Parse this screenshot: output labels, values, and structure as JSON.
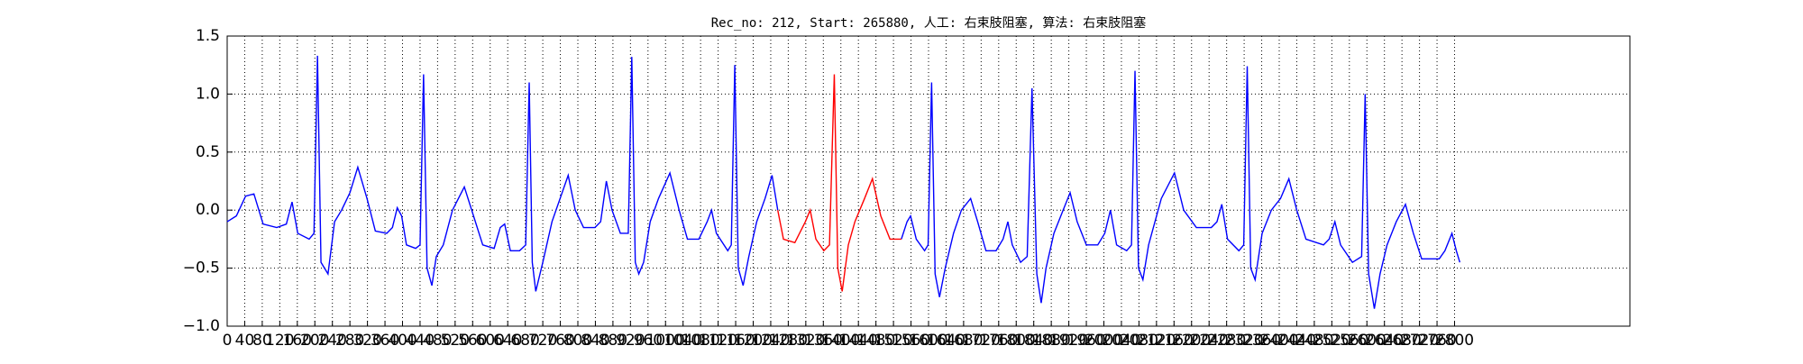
{
  "chart_data": {
    "type": "line",
    "title": "Rec_no: 212, Start: 265880, 人工: 右束肢阻塞, 算法: 右束肢阻塞",
    "xlim": [
      0,
      3200
    ],
    "ylim": [
      -1,
      1.5
    ],
    "xticks": [
      0,
      40,
      80,
      120,
      160,
      200,
      240,
      280,
      320,
      360,
      400,
      440,
      480,
      520,
      560,
      600,
      640,
      680,
      720,
      760,
      800,
      840,
      880,
      920,
      960,
      1000,
      1040,
      1080,
      1120,
      1160,
      1200,
      1240,
      1280,
      1320,
      1360,
      1400,
      1440,
      1480,
      1520,
      1560,
      1600,
      1640,
      1680,
      1720,
      1760,
      1800,
      1840,
      1880,
      1920,
      1960,
      2000,
      2040,
      2080,
      2120,
      2160,
      2200,
      2240,
      2280,
      2320,
      2360,
      2400,
      2440,
      2480,
      2520,
      2560,
      2600,
      2640,
      2680,
      2720,
      2760,
      2800
    ],
    "yticks": [
      {
        "value": -1,
        "label": "−1.0"
      },
      {
        "value": -0.5,
        "label": "−0.5"
      },
      {
        "value": 0,
        "label": "0.0"
      },
      {
        "value": 0.5,
        "label": "0.5"
      },
      {
        "value": 1,
        "label": "1.0"
      },
      {
        "value": 1.5,
        "label": "1.5"
      }
    ],
    "grid": true,
    "series": [
      {
        "color": "#0000ff",
        "x": [
          0,
          21,
          42,
          61,
          82,
          113,
          135,
          148,
          161,
          187,
          198,
          206,
          214,
          222,
          230,
          245,
          261,
          280,
          298,
          319,
          338,
          364,
          377,
          388,
          398,
          409,
          430,
          440,
          448,
          456,
          467,
          477,
          493,
          514,
          541,
          562,
          583,
          609,
          623,
          633,
          646,
          667,
          681,
          689,
          696,
          704,
          720,
          741,
          778,
          794,
          813,
          839,
          852,
          865,
          878,
          897,
          915,
          923,
          931,
          939,
          950,
          965,
          984,
          1010,
          1031,
          1050,
          1076,
          1095,
          1105,
          1116,
          1142,
          1150,
          1158,
          1166,
          1177,
          1190,
          1208,
          1227,
          1243,
          1256,
          1385,
          1538,
          1551,
          1559,
          1572,
          1591,
          1599,
          1607,
          1615,
          1625,
          1638,
          1657,
          1675,
          1696,
          1712,
          1731,
          1754,
          1770,
          1781,
          1791,
          1810,
          1825,
          1836,
          1847,
          1857,
          1868,
          1886,
          1907,
          1923,
          1939,
          1960,
          1986,
          2002,
          2015,
          2029,
          2052,
          2063,
          2071,
          2079,
          2089,
          2102,
          2131,
          2161,
          2182,
          2211,
          2245,
          2258,
          2269,
          2282,
          2308,
          2319,
          2327,
          2335,
          2345,
          2361,
          2382,
          2403,
          2422,
          2440,
          2461,
          2501,
          2514,
          2527,
          2540,
          2567,
          2588,
          2596,
          2604,
          2617,
          2630,
          2646,
          2667,
          2688,
          2706,
          2725,
          2765,
          2778,
          2794,
          2804,
          2812
        ],
        "values": [
          -0.1,
          -0.05,
          0.12,
          0.14,
          -0.12,
          -0.15,
          -0.12,
          0.07,
          -0.2,
          -0.25,
          -0.2,
          1.33,
          -0.45,
          -0.5,
          -0.55,
          -0.1,
          0.0,
          0.15,
          0.37,
          0.1,
          -0.18,
          -0.2,
          -0.15,
          0.02,
          -0.05,
          -0.3,
          -0.33,
          -0.3,
          1.17,
          -0.5,
          -0.65,
          -0.4,
          -0.3,
          0.0,
          0.2,
          -0.05,
          -0.3,
          -0.33,
          -0.15,
          -0.12,
          -0.35,
          -0.35,
          -0.3,
          1.1,
          -0.45,
          -0.7,
          -0.45,
          -0.1,
          0.3,
          0.0,
          -0.15,
          -0.15,
          -0.1,
          0.25,
          0.0,
          -0.2,
          -0.2,
          1.32,
          -0.45,
          -0.55,
          -0.45,
          -0.1,
          0.1,
          0.32,
          0.0,
          -0.25,
          -0.25,
          -0.1,
          0.0,
          -0.2,
          -0.35,
          -0.3,
          1.25,
          -0.5,
          -0.65,
          -0.4,
          -0.1,
          0.1,
          0.3,
          0.0,
          null,
          -0.25,
          -0.1,
          -0.05,
          -0.25,
          -0.35,
          -0.3,
          1.1,
          -0.55,
          -0.75,
          -0.5,
          -0.2,
          0.0,
          0.1,
          -0.1,
          -0.35,
          -0.35,
          -0.25,
          -0.1,
          -0.3,
          -0.45,
          -0.4,
          1.05,
          -0.55,
          -0.8,
          -0.5,
          -0.2,
          0.0,
          0.15,
          -0.1,
          -0.3,
          -0.3,
          -0.2,
          0.0,
          -0.3,
          -0.35,
          -0.3,
          1.2,
          -0.5,
          -0.6,
          -0.3,
          0.1,
          0.32,
          0.0,
          -0.15,
          -0.15,
          -0.1,
          0.05,
          -0.25,
          -0.35,
          -0.3,
          1.24,
          -0.5,
          -0.6,
          -0.2,
          0.0,
          0.1,
          0.27,
          0.0,
          -0.25,
          -0.3,
          -0.25,
          -0.1,
          -0.3,
          -0.45,
          -0.4,
          1.0,
          -0.55,
          -0.85,
          -0.55,
          -0.3,
          -0.1,
          0.05,
          -0.2,
          -0.42,
          -0.42,
          -0.35,
          -0.2,
          -0.35,
          -0.45
        ]
      },
      {
        "color": "#ff0000",
        "x": [
          1256,
          1269,
          1295,
          1319,
          1330,
          1343,
          1361,
          1374,
          1385,
          1393,
          1403,
          1417,
          1432,
          1454,
          1472,
          1491,
          1512,
          1538
        ],
        "values": [
          0.0,
          -0.25,
          -0.28,
          -0.1,
          0.0,
          -0.25,
          -0.35,
          -0.3,
          1.17,
          -0.5,
          -0.7,
          -0.3,
          -0.1,
          0.1,
          0.27,
          -0.05,
          -0.25,
          -0.25
        ]
      }
    ]
  }
}
